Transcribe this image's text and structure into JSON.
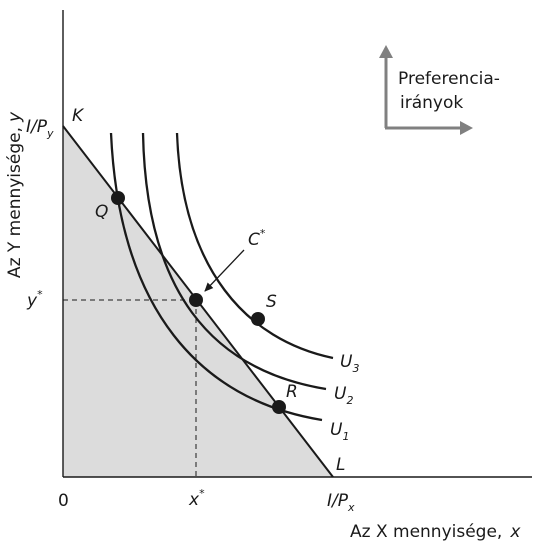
{
  "axes": {
    "y_label": "Az Y mennyisége,",
    "y_var": "y",
    "x_label": "Az X mennyisége,",
    "x_var": "x",
    "origin": "0"
  },
  "budget": {
    "y_intercept": {
      "main": "I/P",
      "sub": "y"
    },
    "x_intercept": {
      "main": "I/P",
      "sub": "x"
    },
    "top_label": "K",
    "bottom_label": "L"
  },
  "optimum": {
    "label": "C",
    "star": "*",
    "x_tick": "x",
    "y_tick": "y"
  },
  "points": {
    "q": "Q",
    "r": "R",
    "s": "S"
  },
  "curves": {
    "u1": {
      "main": "U",
      "sub": "1"
    },
    "u2": {
      "main": "U",
      "sub": "2"
    },
    "u3": {
      "main": "U",
      "sub": "3"
    }
  },
  "preference": {
    "line1": "Preferencia-",
    "line2": "irányok"
  },
  "colors": {
    "line": "#1a1a1a",
    "shade": "#dcdcdc",
    "arrow": "#808080"
  }
}
